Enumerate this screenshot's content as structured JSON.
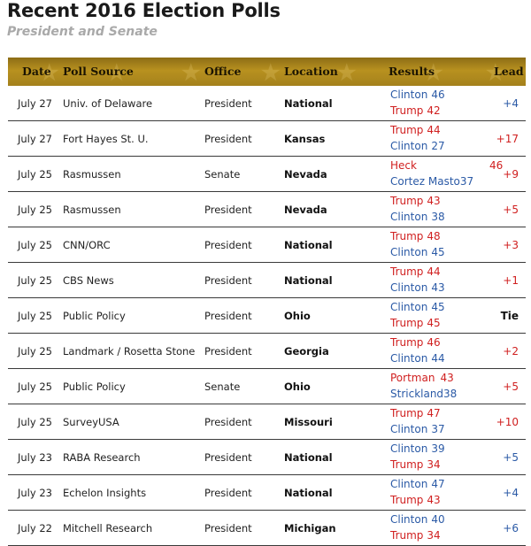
{
  "page": {
    "title": "Recent 2016 Election Polls",
    "subtitle": "President and Senate"
  },
  "colors": {
    "header_gold": "#a4811c",
    "republican_red": "#d02020",
    "democrat_blue": "#2b5aa6",
    "tie_black": "#111111"
  },
  "table": {
    "headers": [
      "Date",
      "Poll Source",
      "Office",
      "Location",
      "Results",
      "Lead"
    ],
    "rows": [
      {
        "date": "July 27",
        "source": "Univ. of Delaware",
        "office": "President",
        "location": "National",
        "r1": {
          "name": "Clinton",
          "num": "46",
          "party": "D"
        },
        "r2": {
          "name": "Trump",
          "num": "42",
          "party": "R"
        },
        "lead": "+4",
        "lead_party": "D"
      },
      {
        "date": "July 27",
        "source": "Fort Hayes St. U.",
        "office": "President",
        "location": "Kansas",
        "r1": {
          "name": "Trump",
          "num": "44",
          "party": "R"
        },
        "r2": {
          "name": "Clinton",
          "num": "27",
          "party": "D"
        },
        "lead": "+17",
        "lead_party": "R"
      },
      {
        "date": "July 25",
        "source": "Rasmussen",
        "office": "Senate",
        "location": "Nevada",
        "r1": {
          "name": "Heck",
          "num": "46",
          "party": "R"
        },
        "r2": {
          "name": "Cortez Masto",
          "num": "37",
          "party": "D"
        },
        "lead": "+9",
        "lead_party": "R"
      },
      {
        "date": "July 25",
        "source": "Rasmussen",
        "office": "President",
        "location": "Nevada",
        "r1": {
          "name": "Trump",
          "num": "43",
          "party": "R"
        },
        "r2": {
          "name": "Clinton",
          "num": "38",
          "party": "D"
        },
        "lead": "+5",
        "lead_party": "R"
      },
      {
        "date": "July 25",
        "source": "CNN/ORC",
        "office": "President",
        "location": "National",
        "r1": {
          "name": "Trump",
          "num": "48",
          "party": "R"
        },
        "r2": {
          "name": "Clinton",
          "num": "45",
          "party": "D"
        },
        "lead": "+3",
        "lead_party": "R"
      },
      {
        "date": "July 25",
        "source": "CBS News",
        "office": "President",
        "location": "National",
        "r1": {
          "name": "Trump",
          "num": "44",
          "party": "R"
        },
        "r2": {
          "name": "Clinton",
          "num": "43",
          "party": "D"
        },
        "lead": "+1",
        "lead_party": "R"
      },
      {
        "date": "July 25",
        "source": "Public Policy",
        "office": "President",
        "location": "Ohio",
        "r1": {
          "name": "Clinton",
          "num": "45",
          "party": "D"
        },
        "r2": {
          "name": "Trump",
          "num": "45",
          "party": "R"
        },
        "lead": "Tie",
        "lead_party": "T"
      },
      {
        "date": "July 25",
        "source": "Landmark / Rosetta Stone",
        "office": "President",
        "location": "Georgia",
        "r1": {
          "name": "Trump",
          "num": "46",
          "party": "R"
        },
        "r2": {
          "name": "Clinton",
          "num": "44",
          "party": "D"
        },
        "lead": "+2",
        "lead_party": "R"
      },
      {
        "date": "July 25",
        "source": "Public Policy",
        "office": "Senate",
        "location": "Ohio",
        "r1": {
          "name": "Portman",
          "num": "43",
          "party": "R"
        },
        "r2": {
          "name": "Strickland",
          "num": "38",
          "party": "D"
        },
        "lead": "+5",
        "lead_party": "R"
      },
      {
        "date": "July 25",
        "source": "SurveyUSA",
        "office": "President",
        "location": "Missouri",
        "r1": {
          "name": "Trump",
          "num": "47",
          "party": "R"
        },
        "r2": {
          "name": "Clinton",
          "num": "37",
          "party": "D"
        },
        "lead": "+10",
        "lead_party": "R"
      },
      {
        "date": "July 23",
        "source": "RABA Research",
        "office": "President",
        "location": "National",
        "r1": {
          "name": "Clinton",
          "num": "39",
          "party": "D"
        },
        "r2": {
          "name": "Trump",
          "num": "34",
          "party": "R"
        },
        "lead": "+5",
        "lead_party": "D"
      },
      {
        "date": "July 23",
        "source": "Echelon Insights",
        "office": "President",
        "location": "National",
        "r1": {
          "name": "Clinton",
          "num": "47",
          "party": "D"
        },
        "r2": {
          "name": "Trump",
          "num": "43",
          "party": "R"
        },
        "lead": "+4",
        "lead_party": "D"
      },
      {
        "date": "July 22",
        "source": "Mitchell Research",
        "office": "President",
        "location": "Michigan",
        "r1": {
          "name": "Clinton",
          "num": "40",
          "party": "D"
        },
        "r2": {
          "name": "Trump",
          "num": "34",
          "party": "R"
        },
        "lead": "+6",
        "lead_party": "D"
      }
    ]
  }
}
